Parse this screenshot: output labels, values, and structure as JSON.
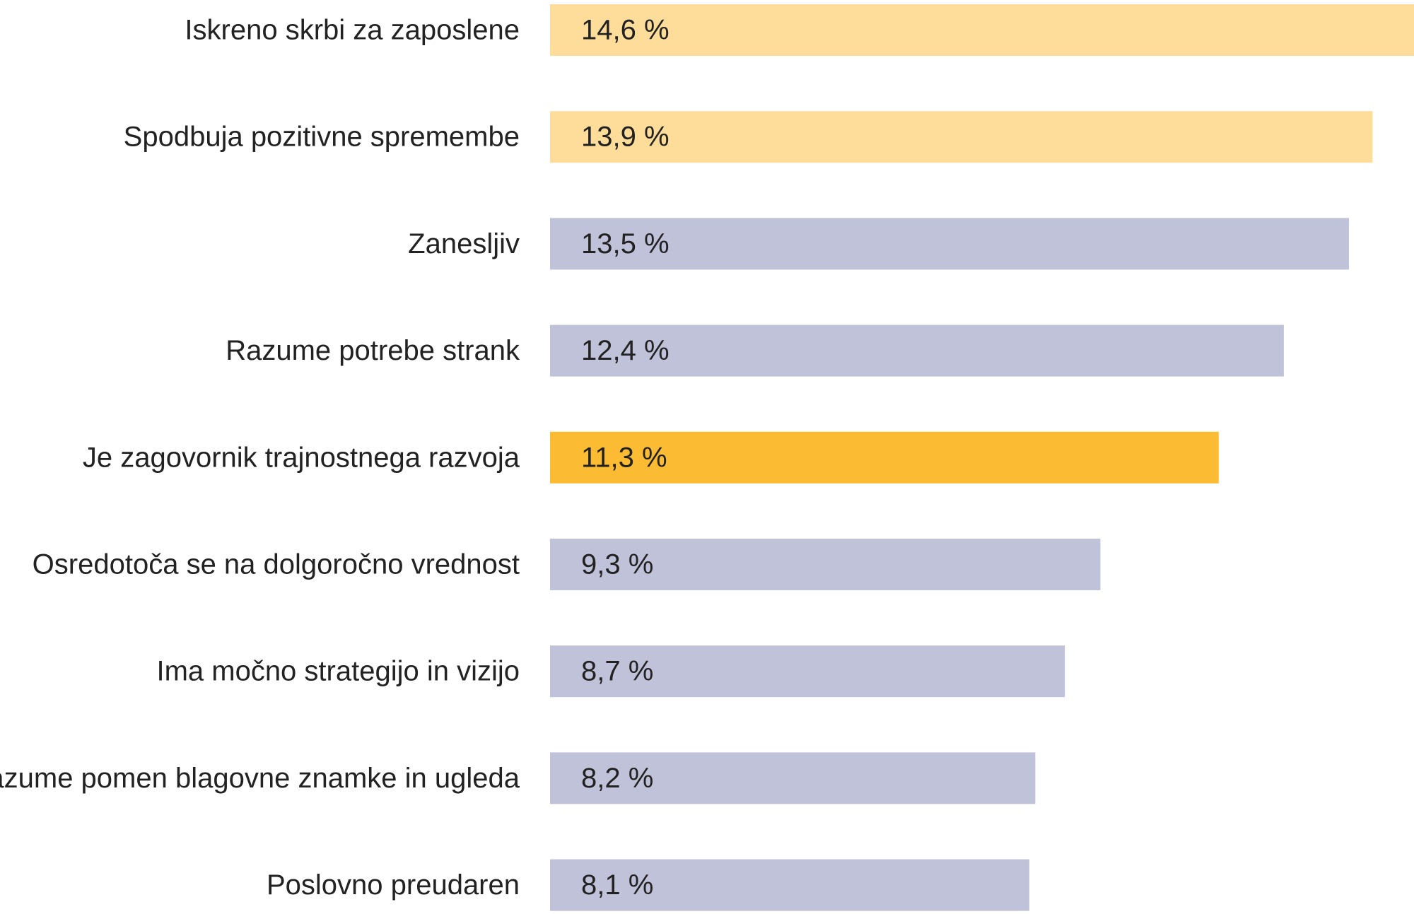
{
  "chart_data": {
    "type": "bar",
    "orientation": "horizontal",
    "categories": [
      "Iskreno skrbi za zaposlene",
      "Spodbuja pozitivne spremembe",
      "Zanesljiv",
      "Razume potrebe strank",
      "Je zagovornik trajnostnega razvoja",
      "Osredotoča se na dolgoročno vrednost",
      "Ima močno strategijo in vizijo",
      "Razume pomen blagovne znamke in ugleda",
      "Poslovno preudaren"
    ],
    "values": [
      14.6,
      13.9,
      13.5,
      12.4,
      11.3,
      9.3,
      8.7,
      8.2,
      8.1
    ],
    "value_labels": [
      "14,6 %",
      "13,9 %",
      "13,5 %",
      "12,4 %",
      "11,3 %",
      "9,3 %",
      "8,7 %",
      "8,2 %",
      "8,1 %"
    ],
    "bar_colors": [
      "#fedd9b",
      "#fedd9b",
      "#bfc2d8",
      "#bfc2d8",
      "#fbbb33",
      "#bfc2d8",
      "#bfc2d8",
      "#bfc2d8",
      "#bfc2d8"
    ],
    "title": "",
    "xlabel": "",
    "ylabel": "",
    "xlim": [
      0,
      14.6
    ],
    "grid": false,
    "legend": "none"
  }
}
